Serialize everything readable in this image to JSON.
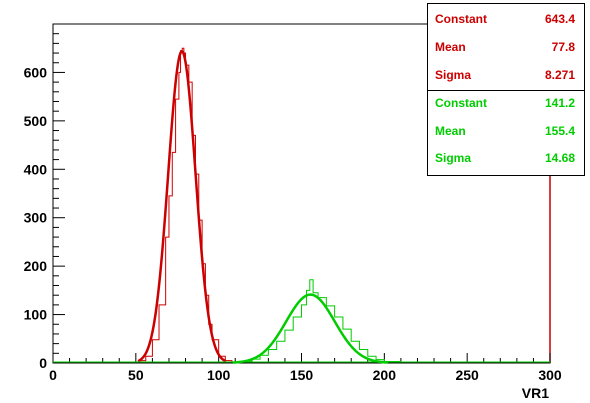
{
  "chart_data": {
    "type": "line",
    "xlabel": "VR1",
    "ylabel": "",
    "xlim": [
      0,
      300
    ],
    "ylim": [
      0,
      700
    ],
    "x_ticks": [
      0,
      50,
      100,
      150,
      200,
      250,
      300
    ],
    "y_ticks": [
      0,
      100,
      200,
      300,
      400,
      500,
      600
    ],
    "grid": false,
    "series": [
      {
        "color": "#cc0000",
        "fit": {
          "constant": 643.4,
          "mean": 77.8,
          "sigma": 8.271
        },
        "x": [
          52,
          56,
          60,
          64,
          68,
          70,
          72,
          74,
          76,
          77,
          78,
          79,
          80,
          82,
          84,
          86,
          88,
          90,
          92,
          94,
          96,
          100,
          104,
          108
        ],
        "y": [
          5,
          14,
          48,
          120,
          260,
          345,
          435,
          545,
          600,
          645,
          650,
          640,
          615,
          580,
          470,
          390,
          295,
          205,
          140,
          80,
          48,
          14,
          5,
          2
        ]
      },
      {
        "color": "#00cc00",
        "fit": {
          "constant": 141.2,
          "mean": 155.4,
          "sigma": 14.68
        },
        "x": [
          110,
          115,
          120,
          125,
          130,
          135,
          140,
          145,
          150,
          153,
          155,
          157,
          160,
          165,
          170,
          175,
          180,
          185,
          190,
          195,
          200,
          210
        ],
        "y": [
          2,
          4,
          8,
          16,
          28,
          45,
          68,
          95,
          120,
          150,
          172,
          145,
          135,
          118,
          95,
          70,
          45,
          28,
          14,
          7,
          3,
          1
        ]
      }
    ],
    "stats": [
      {
        "color": "#cc0000",
        "rows": [
          {
            "label": "Constant",
            "value": "643.4"
          },
          {
            "label": "Mean",
            "value": "77.8"
          },
          {
            "label": "Sigma",
            "value": "8.271"
          }
        ]
      },
      {
        "color": "#00cc00",
        "rows": [
          {
            "label": "Constant",
            "value": "141.2"
          },
          {
            "label": "Mean",
            "value": "155.4"
          },
          {
            "label": "Sigma",
            "value": "14.68"
          }
        ]
      }
    ]
  }
}
